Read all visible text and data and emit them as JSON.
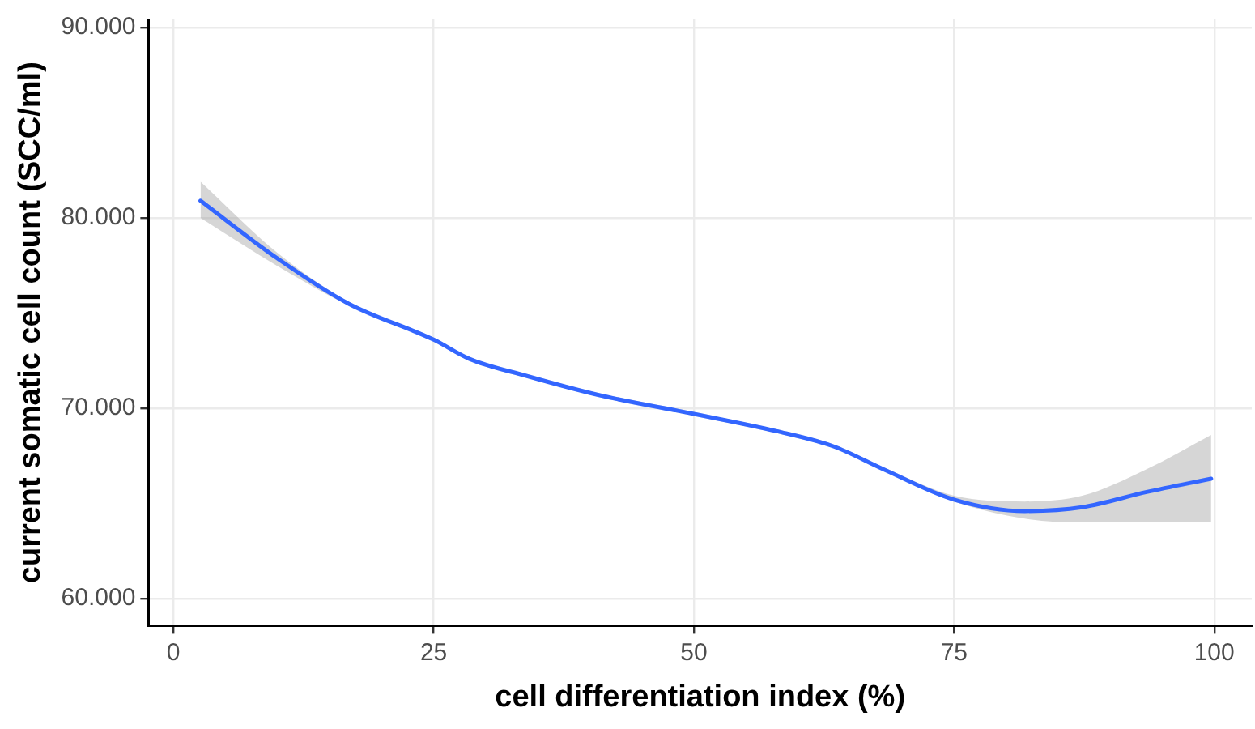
{
  "chart_data": {
    "type": "line",
    "xlabel": "cell differentiation index (%)",
    "ylabel": "current somatic cell count (SCC/ml)",
    "xlim": [
      -2.4,
      103.6
    ],
    "xticks": [
      0,
      25,
      50,
      75,
      100
    ],
    "ylim": [
      58580,
      90420
    ],
    "yticks": [
      {
        "value": 60000,
        "label": "60.000"
      },
      {
        "value": 70000,
        "label": "70.000"
      },
      {
        "value": 80000,
        "label": "80.000"
      },
      {
        "value": 90000,
        "label": "90.000"
      }
    ],
    "grid": true,
    "legend": false,
    "marker": "none",
    "line_style": "solid",
    "series": [
      {
        "color": "#3366ff",
        "x": [
          2.6,
          9.9,
          16.8,
          25,
          28.4,
          33.9,
          40.8,
          50,
          57.9,
          63.4,
          68.2,
          75,
          81.8,
          87.3,
          93.5,
          99.7
        ],
        "values": [
          80900,
          77900,
          75500,
          73600,
          72600,
          71700,
          70700,
          69700,
          68800,
          68000,
          66800,
          65200,
          64600,
          64800,
          65600,
          66300
        ],
        "upper": [
          81900,
          78200,
          75600,
          73700,
          72700,
          71800,
          70800,
          69800,
          68900,
          68100,
          66900,
          65400,
          65100,
          65400,
          66800,
          68600
        ],
        "lower": [
          80000,
          77500,
          75400,
          73500,
          72500,
          71600,
          70600,
          69600,
          68700,
          67900,
          66700,
          65100,
          64200,
          64000,
          64000,
          64000
        ]
      }
    ]
  }
}
